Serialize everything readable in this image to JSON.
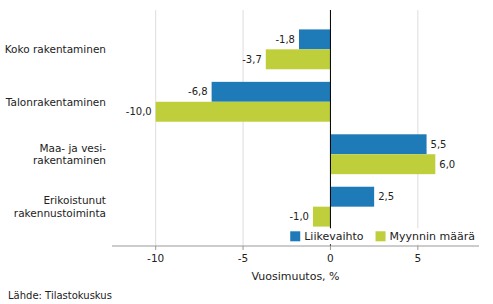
{
  "chart_data": {
    "type": "bar",
    "orientation": "horizontal",
    "categories": [
      "Erikoistunut\nrakennustoiminta",
      "Maa- ja vesi-\nrakentaminen",
      "Talonrakentaminen",
      "Koko rakentaminen"
    ],
    "series": [
      {
        "name": "Liikevaihto",
        "color": "#1F7BB8",
        "values": [
          2.5,
          5.5,
          -6.8,
          -1.8
        ],
        "value_labels": [
          "2,5",
          "5,5",
          "-6,8",
          "-1,8"
        ]
      },
      {
        "name": "Myynnin määrä",
        "color": "#BFCE3B",
        "values": [
          -1.0,
          6.0,
          -10.0,
          -3.7
        ],
        "value_labels": [
          "-1,0",
          "6,0",
          "-10,0",
          "-3,7"
        ]
      }
    ],
    "x_label": "Vuosimuutos, %",
    "xlim": [
      -12.5,
      8.5
    ],
    "xticks": [
      -10,
      -5,
      0,
      5
    ],
    "grid": true,
    "legend": "lower right",
    "data_labels": true,
    "annotations": [
      "Lähde: Tilastokuskus"
    ]
  }
}
